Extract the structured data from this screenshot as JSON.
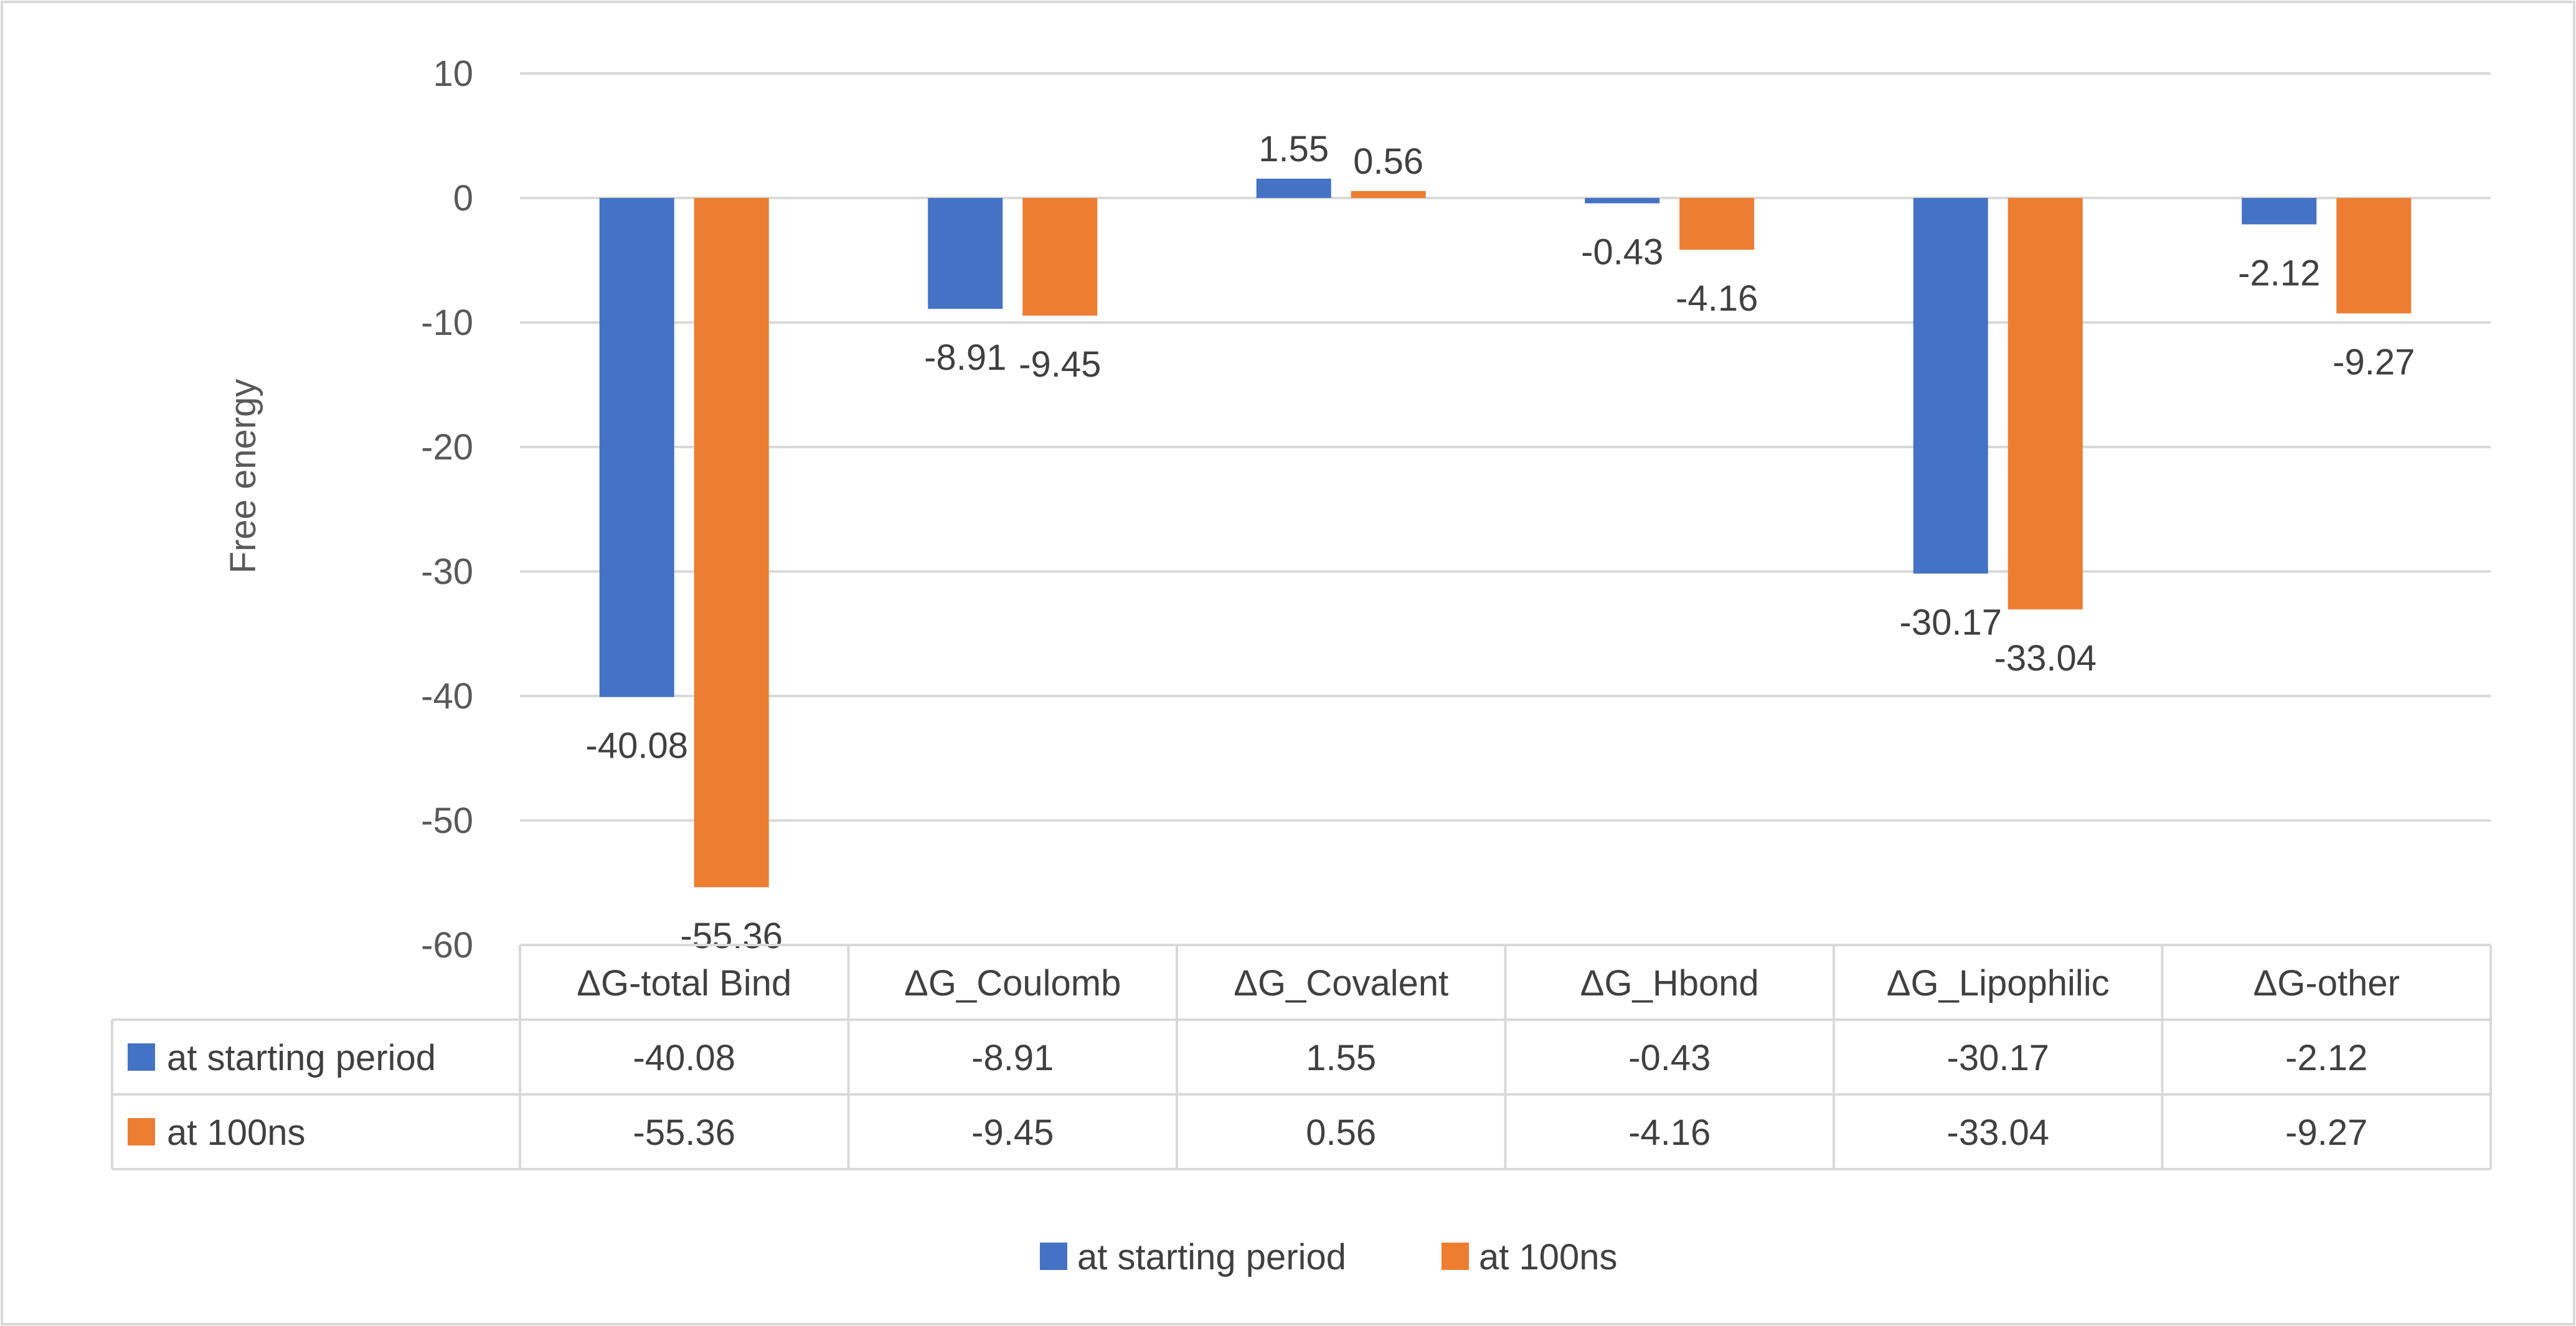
{
  "chart_data": {
    "type": "bar",
    "title": "",
    "xlabel": "",
    "ylabel": "Free energy",
    "ylim": [
      -60,
      10
    ],
    "ytick_step": 10,
    "grid": true,
    "legend_position": "bottom",
    "data_table": true,
    "categories": [
      "ΔG-total Bind",
      "ΔG_Coulomb",
      "ΔG_Covalent",
      "ΔG_Hbond",
      "ΔG_Lipophilic",
      "ΔG-other"
    ],
    "series": [
      {
        "name": "at starting period",
        "color": "#4472C4",
        "values": [
          -40.08,
          -8.91,
          1.55,
          -0.43,
          -30.17,
          -2.12
        ],
        "labels": [
          "-40.08",
          "-8.91",
          "1.55",
          "-0.43",
          "-30.17",
          "-2.12"
        ]
      },
      {
        "name": "at 100ns",
        "color": "#ED7D31",
        "values": [
          -55.36,
          -9.45,
          0.56,
          -4.16,
          -33.04,
          -9.27
        ],
        "labels": [
          "-55.36",
          "-9.45",
          "0.56",
          "-4.16",
          "-33.04",
          "-9.27"
        ]
      }
    ]
  }
}
